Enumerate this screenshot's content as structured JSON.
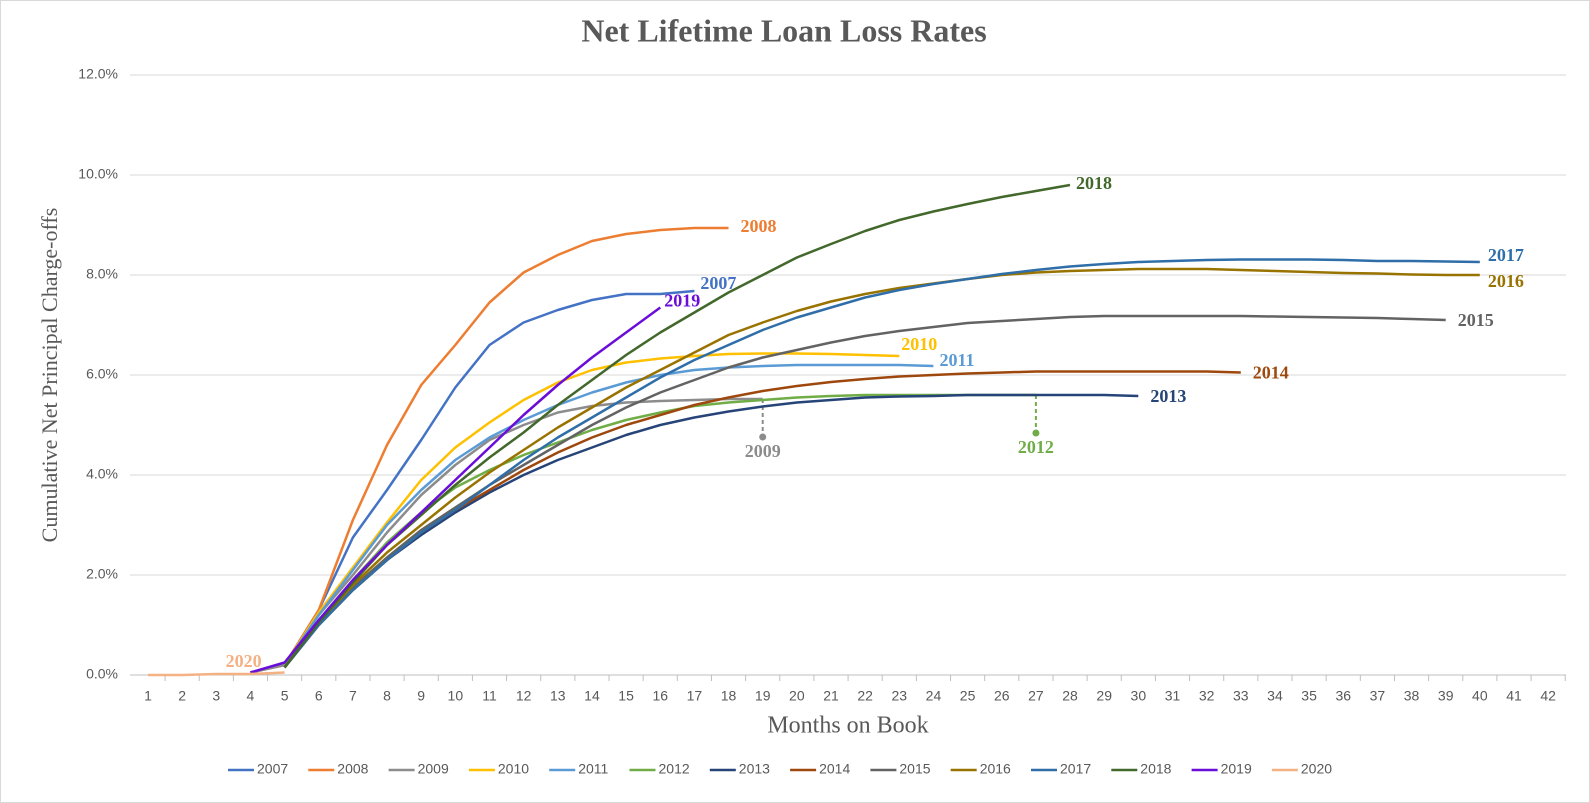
{
  "chart_data": {
    "type": "line",
    "title": "Net Lifetime Loan Loss Rates",
    "x_label": "Months on Book",
    "y_label": "Cumulative Net Principal Charge-offs",
    "categories": [
      1,
      2,
      3,
      4,
      5,
      6,
      7,
      8,
      9,
      10,
      11,
      12,
      13,
      14,
      15,
      16,
      17,
      18,
      19,
      20,
      21,
      22,
      23,
      24,
      25,
      26,
      27,
      28,
      29,
      30,
      31,
      32,
      33,
      34,
      35,
      36,
      37,
      38,
      39,
      40,
      41,
      42
    ],
    "ylim": [
      0,
      12
    ],
    "yticks": [
      {
        "value": 0,
        "label": "0.0%"
      },
      {
        "value": 2,
        "label": "2.0%"
      },
      {
        "value": 4,
        "label": "4.0%"
      },
      {
        "value": 6,
        "label": "6.0%"
      },
      {
        "value": 8,
        "label": "8.0%"
      },
      {
        "value": 10,
        "label": "10.0%"
      },
      {
        "value": 12,
        "label": "12.0%"
      }
    ],
    "grid": true,
    "legend": "bottom",
    "series": [
      {
        "name": "2007",
        "color": "#4472c4",
        "values": [
          null,
          null,
          null,
          0.05,
          0.2,
          1.3,
          2.75,
          3.7,
          4.7,
          5.75,
          6.6,
          7.05,
          7.3,
          7.5,
          7.62,
          7.62,
          7.68,
          null,
          null,
          null,
          null,
          null,
          null,
          null,
          null,
          null,
          null,
          null,
          null,
          null,
          null,
          null,
          null,
          null,
          null,
          null,
          null,
          null,
          null,
          null,
          null,
          null
        ]
      },
      {
        "name": "2008",
        "color": "#ed7d31",
        "values": [
          null,
          null,
          null,
          0.05,
          0.2,
          1.3,
          3.1,
          4.6,
          5.8,
          6.6,
          7.45,
          8.05,
          8.4,
          8.68,
          8.82,
          8.9,
          8.94,
          8.94,
          null,
          null,
          null,
          null,
          null,
          null,
          null,
          null,
          null,
          null,
          null,
          null,
          null,
          null,
          null,
          null,
          null,
          null,
          null,
          null,
          null,
          null,
          null,
          null
        ]
      },
      {
        "name": "2009",
        "color": "#8c8c8c",
        "values": [
          null,
          null,
          null,
          0.05,
          0.2,
          1.2,
          2.0,
          2.85,
          3.6,
          4.2,
          4.7,
          5.0,
          5.25,
          5.38,
          5.45,
          5.48,
          5.5,
          5.52,
          5.52,
          null,
          null,
          null,
          null,
          null,
          null,
          null,
          null,
          null,
          null,
          null,
          null,
          null,
          null,
          null,
          null,
          null,
          null,
          null,
          null,
          null,
          null,
          null
        ]
      },
      {
        "name": "2010",
        "color": "#ffc000",
        "values": [
          null,
          null,
          null,
          null,
          0.2,
          1.25,
          2.15,
          3.05,
          3.9,
          4.55,
          5.05,
          5.5,
          5.85,
          6.1,
          6.25,
          6.33,
          6.38,
          6.42,
          6.43,
          6.43,
          6.42,
          6.4,
          6.38,
          null,
          null,
          null,
          null,
          null,
          null,
          null,
          null,
          null,
          null,
          null,
          null,
          null,
          null,
          null,
          null,
          null,
          null,
          null
        ]
      },
      {
        "name": "2011",
        "color": "#5b9bd5",
        "values": [
          null,
          null,
          null,
          null,
          0.2,
          1.2,
          2.1,
          3.0,
          3.7,
          4.3,
          4.75,
          5.1,
          5.4,
          5.65,
          5.85,
          6.0,
          6.1,
          6.15,
          6.18,
          6.2,
          6.2,
          6.2,
          6.2,
          6.18,
          null,
          null,
          null,
          null,
          null,
          null,
          null,
          null,
          null,
          null,
          null,
          null,
          null,
          null,
          null,
          null,
          null,
          null
        ]
      },
      {
        "name": "2012",
        "color": "#70ad47",
        "values": [
          null,
          null,
          null,
          null,
          0.2,
          1.1,
          1.9,
          2.65,
          3.25,
          3.75,
          4.1,
          4.4,
          4.65,
          4.9,
          5.1,
          5.25,
          5.38,
          5.45,
          5.5,
          5.55,
          5.58,
          5.6,
          5.6,
          5.6,
          5.6,
          5.6,
          5.6,
          null,
          null,
          null,
          null,
          null,
          null,
          null,
          null,
          null,
          null,
          null,
          null,
          null,
          null,
          null
        ]
      },
      {
        "name": "2013",
        "color": "#264478",
        "values": [
          null,
          null,
          null,
          null,
          0.15,
          1.0,
          1.7,
          2.3,
          2.8,
          3.25,
          3.65,
          4.0,
          4.3,
          4.55,
          4.8,
          5.0,
          5.15,
          5.27,
          5.37,
          5.45,
          5.5,
          5.55,
          5.57,
          5.58,
          5.6,
          5.6,
          5.6,
          5.6,
          5.6,
          5.58,
          null,
          null,
          null,
          null,
          null,
          null,
          null,
          null,
          null,
          null,
          null,
          null
        ]
      },
      {
        "name": "2014",
        "color": "#9e480e",
        "values": [
          null,
          null,
          null,
          null,
          0.15,
          1.0,
          1.7,
          2.3,
          2.85,
          3.3,
          3.7,
          4.1,
          4.45,
          4.75,
          5.0,
          5.2,
          5.4,
          5.55,
          5.68,
          5.78,
          5.86,
          5.92,
          5.97,
          6.0,
          6.03,
          6.05,
          6.07,
          6.07,
          6.07,
          6.07,
          6.07,
          6.07,
          6.05,
          null,
          null,
          null,
          null,
          null,
          null,
          null,
          null,
          null
        ]
      },
      {
        "name": "2015",
        "color": "#636363",
        "values": [
          null,
          null,
          null,
          null,
          0.15,
          1.05,
          1.75,
          2.35,
          2.9,
          3.35,
          3.8,
          4.2,
          4.6,
          5.0,
          5.35,
          5.65,
          5.9,
          6.15,
          6.35,
          6.5,
          6.65,
          6.78,
          6.88,
          6.96,
          7.04,
          7.08,
          7.12,
          7.16,
          7.18,
          7.18,
          7.18,
          7.18,
          7.18,
          7.17,
          7.16,
          7.15,
          7.14,
          7.12,
          7.1,
          null,
          null,
          null
        ]
      },
      {
        "name": "2016",
        "color": "#997300",
        "values": [
          null,
          null,
          null,
          null,
          0.15,
          1.05,
          1.8,
          2.45,
          3.0,
          3.55,
          4.05,
          4.5,
          4.95,
          5.35,
          5.75,
          6.1,
          6.45,
          6.8,
          7.05,
          7.28,
          7.47,
          7.62,
          7.74,
          7.83,
          7.92,
          8.0,
          8.05,
          8.08,
          8.1,
          8.12,
          8.12,
          8.12,
          8.1,
          8.08,
          8.06,
          8.04,
          8.03,
          8.01,
          8.0,
          8.0,
          null,
          null
        ]
      },
      {
        "name": "2017",
        "color": "#2f6ea8",
        "values": [
          null,
          null,
          null,
          null,
          0.15,
          1.0,
          1.7,
          2.3,
          2.85,
          3.3,
          3.8,
          4.3,
          4.75,
          5.15,
          5.55,
          5.95,
          6.3,
          6.6,
          6.9,
          7.15,
          7.35,
          7.55,
          7.7,
          7.82,
          7.92,
          8.02,
          8.1,
          8.17,
          8.22,
          8.26,
          8.28,
          8.3,
          8.31,
          8.31,
          8.31,
          8.3,
          8.28,
          8.28,
          8.27,
          8.26,
          null,
          null
        ]
      },
      {
        "name": "2018",
        "color": "#43682b",
        "values": [
          null,
          null,
          null,
          null,
          0.15,
          1.05,
          1.85,
          2.6,
          3.2,
          3.8,
          4.35,
          4.85,
          5.4,
          5.9,
          6.4,
          6.85,
          7.25,
          7.65,
          8.0,
          8.35,
          8.62,
          8.88,
          9.1,
          9.27,
          9.42,
          9.56,
          9.68,
          9.8,
          null,
          null,
          null,
          null,
          null,
          null,
          null,
          null,
          null,
          null,
          null,
          null,
          null,
          null
        ]
      },
      {
        "name": "2019",
        "color": "#6a0dd8",
        "values": [
          null,
          null,
          null,
          0.05,
          0.25,
          1.1,
          1.9,
          2.6,
          3.25,
          3.9,
          4.55,
          5.2,
          5.8,
          6.35,
          6.85,
          7.35,
          null,
          null,
          null,
          null,
          null,
          null,
          null,
          null,
          null,
          null,
          null,
          null,
          null,
          null,
          null,
          null,
          null,
          null,
          null,
          null,
          null,
          null,
          null,
          null,
          null,
          null
        ]
      },
      {
        "name": "2020",
        "color": "#f4b183",
        "values": [
          0,
          0,
          0.02,
          0.02,
          0.05,
          null,
          null,
          null,
          null,
          null,
          null,
          null,
          null,
          null,
          null,
          null,
          null,
          null,
          null,
          null,
          null,
          null,
          null,
          null,
          null,
          null,
          null,
          null,
          null,
          null,
          null,
          null,
          null,
          null,
          null,
          null,
          null,
          null,
          null,
          null,
          null,
          null
        ]
      }
    ]
  }
}
